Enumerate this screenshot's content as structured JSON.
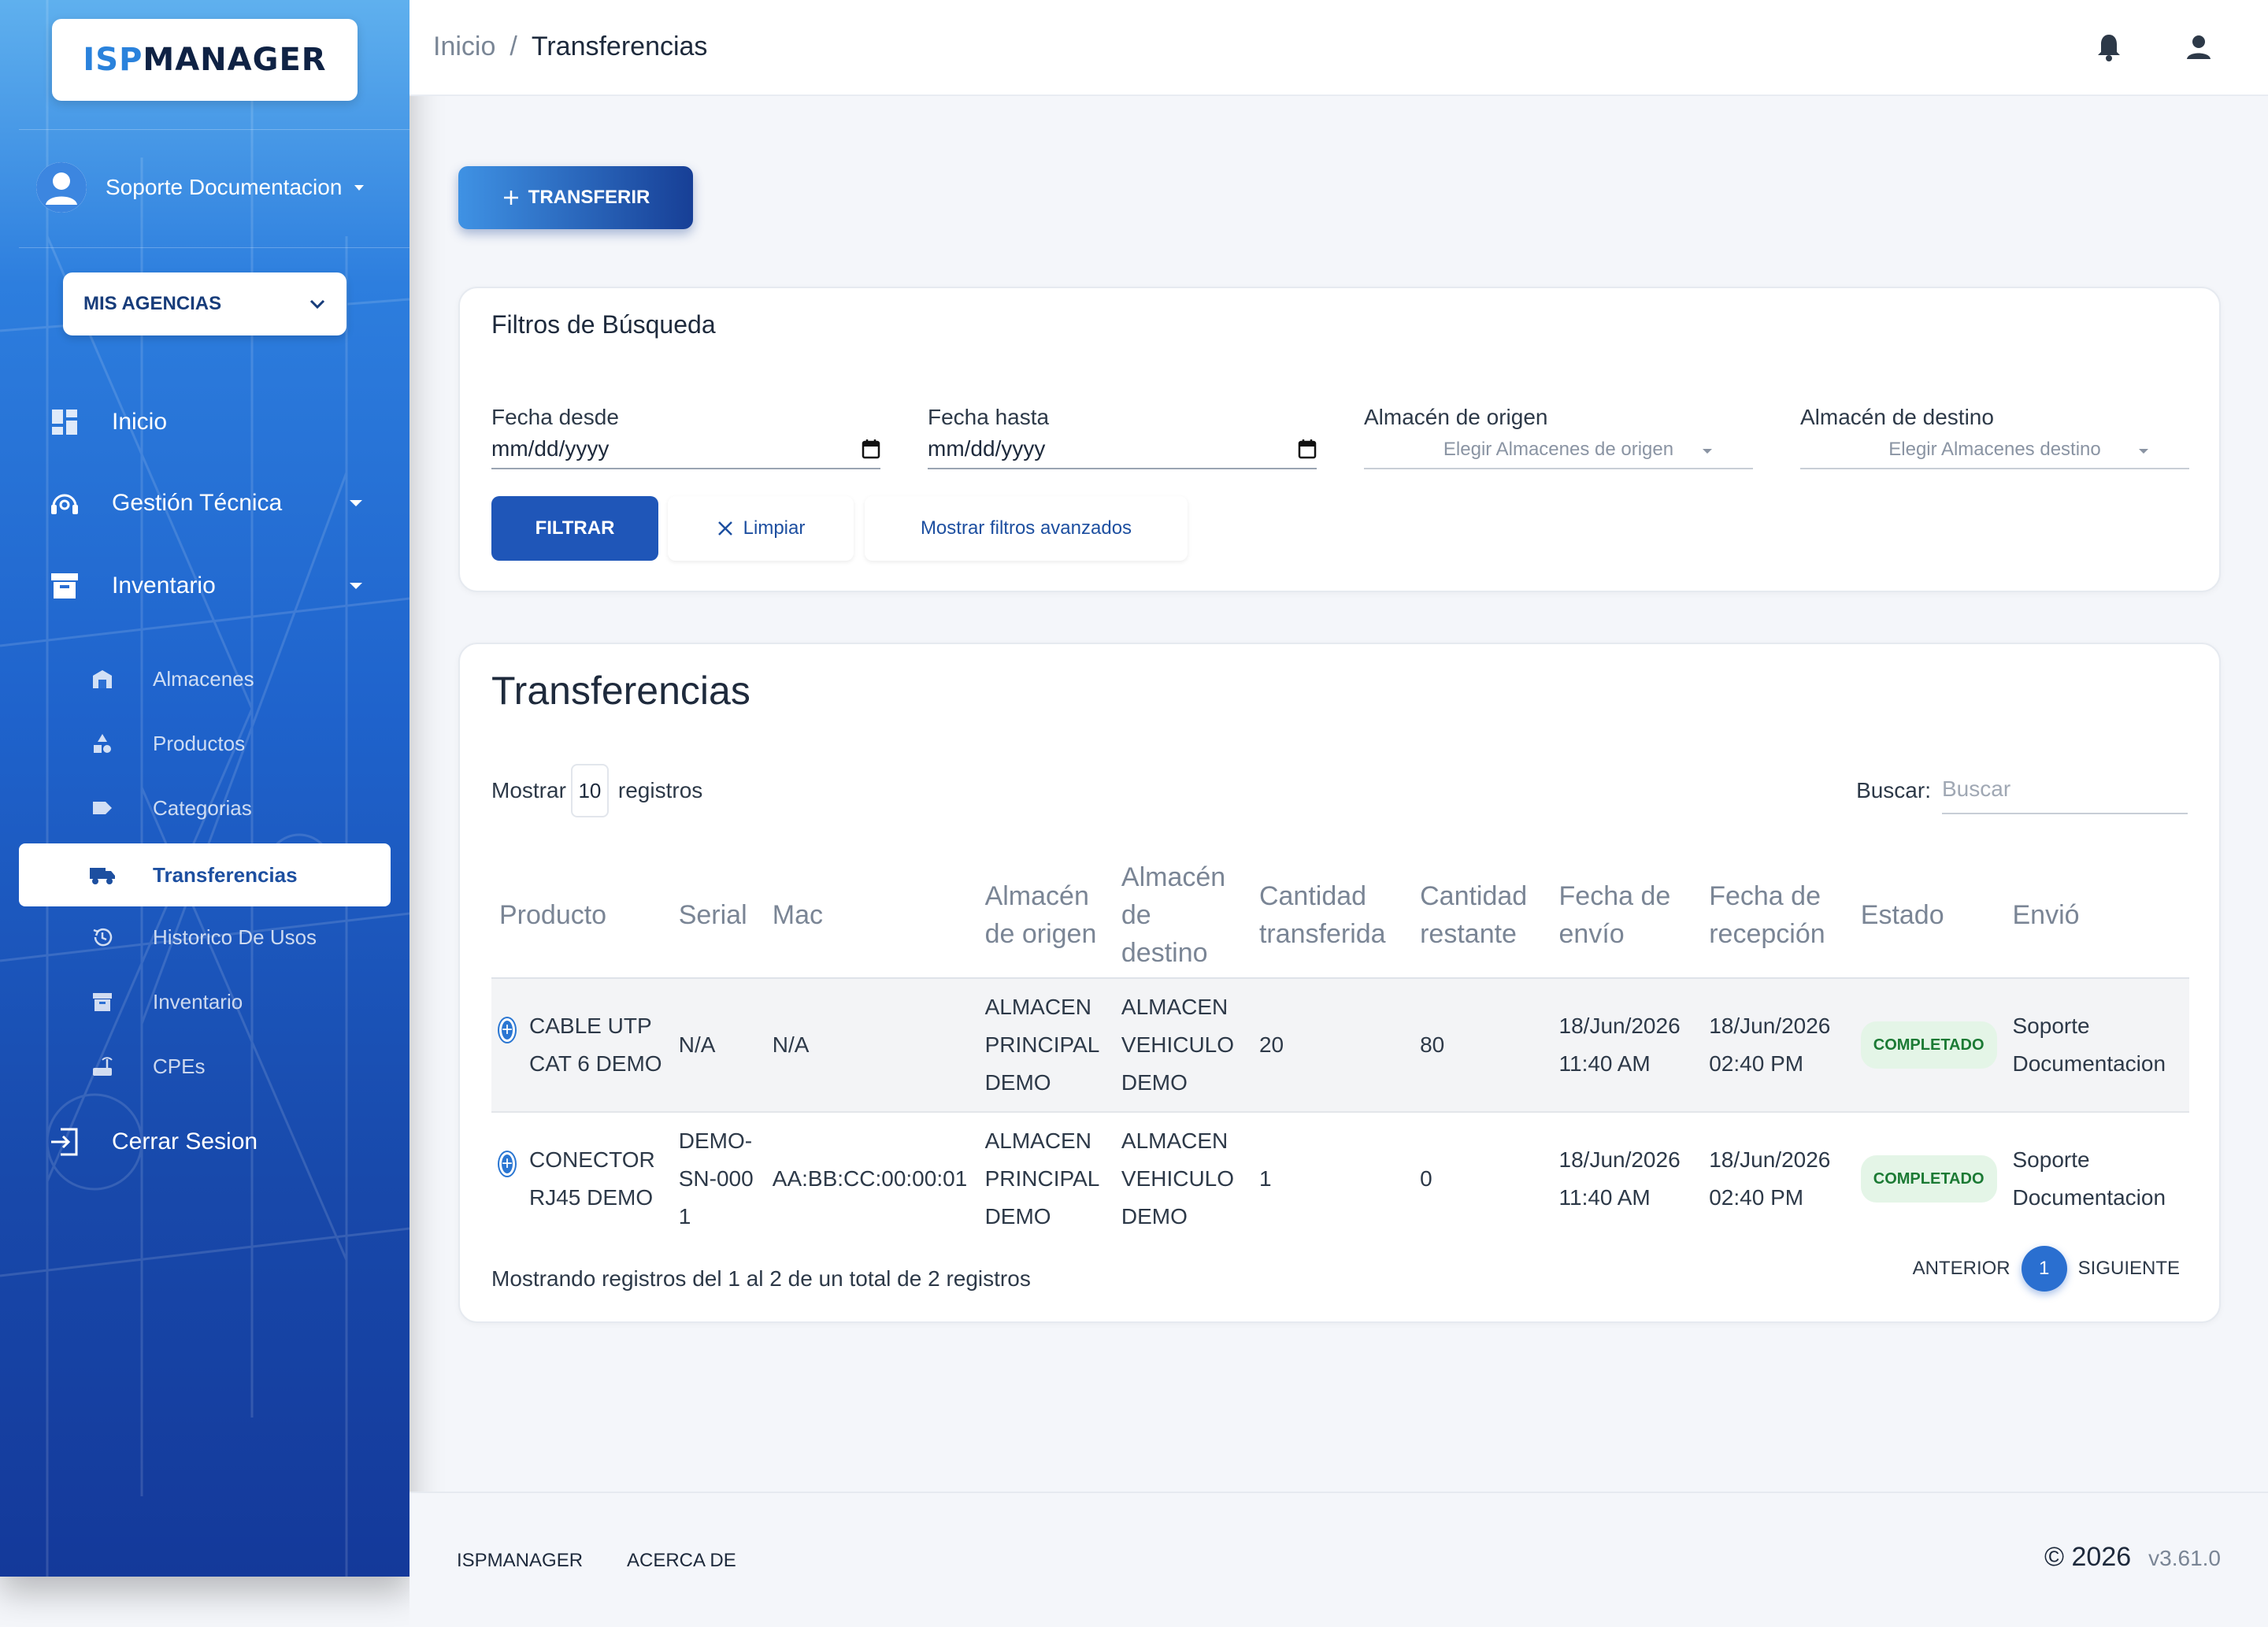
{
  "logo": {
    "part1": "ISP",
    "part2": "MANAGER"
  },
  "user": {
    "name": "Soporte Documentacion"
  },
  "agencies": {
    "label": "MIS AGENCIAS"
  },
  "nav": {
    "inicio": "Inicio",
    "gestion": "Gestión Técnica",
    "inventario": "Inventario",
    "cerrar": "Cerrar Sesion"
  },
  "subnav": {
    "almacenes": "Almacenes",
    "productos": "Productos",
    "categorias": "Categorias",
    "transferencias": "Transferencias",
    "historico": "Historico De Usos",
    "inventario": "Inventario",
    "cpes": "CPEs"
  },
  "breadcrumb": {
    "home": "Inicio",
    "sep": "/",
    "current": "Transferencias"
  },
  "actions": {
    "transferir": "TRANSFERIR"
  },
  "filters": {
    "title": "Filtros de Búsqueda",
    "fecha_desde_label": "Fecha desde",
    "fecha_desde_value": "mm/dd/yyyy",
    "fecha_hasta_label": "Fecha hasta",
    "fecha_hasta_value": "mm/dd/yyyy",
    "origen_label": "Almacén de origen",
    "origen_placeholder": "Elegir Almacenes de origen",
    "destino_label": "Almacén de destino",
    "destino_placeholder": "Elegir Almacenes destino",
    "filtrar": "FILTRAR",
    "limpiar": "Limpiar",
    "avanzados": "Mostrar filtros avanzados"
  },
  "table": {
    "title": "Transferencias",
    "show_prefix": "Mostrar",
    "show_value": "10",
    "show_suffix": "registros",
    "search_label": "Buscar:",
    "search_placeholder": "Buscar",
    "headers": {
      "producto": "Producto",
      "serial": "Serial",
      "mac": "Mac",
      "origen": "Almacén de origen",
      "destino": "Almacén de destino",
      "transferida": "Cantidad transferida",
      "restante": "Cantidad restante",
      "envio_fecha": "Fecha de envío",
      "recepcion_fecha": "Fecha de recepción",
      "estado": "Estado",
      "envio": "Envió"
    },
    "rows": [
      {
        "producto": "CABLE UTP CAT 6 DEMO",
        "serial": "N/A",
        "mac": "N/A",
        "origen": "ALMACEN PRINCIPAL DEMO",
        "destino": "ALMACEN VEHICULO DEMO",
        "transferida": "20",
        "restante": "80",
        "envio_fecha": "18/Jun/2026 11:40 AM",
        "recepcion_fecha": "18/Jun/2026 02:40 PM",
        "estado": "COMPLETADO",
        "envio": "Soporte Documentacion"
      },
      {
        "producto": "CONECTOR RJ45 DEMO",
        "serial": "DEMO-SN-0001",
        "mac": "AA:BB:CC:00:00:01",
        "origen": "ALMACEN PRINCIPAL DEMO",
        "destino": "ALMACEN VEHICULO DEMO",
        "transferida": "1",
        "restante": "0",
        "envio_fecha": "18/Jun/2026 11:40 AM",
        "recepcion_fecha": "18/Jun/2026 02:40 PM",
        "estado": "COMPLETADO",
        "envio": "Soporte Documentacion"
      }
    ],
    "info": "Mostrando registros del 1 al 2 de un total de 2 registros",
    "prev": "ANTERIOR",
    "page": "1",
    "next": "SIGUIENTE"
  },
  "footer": {
    "brand": "ISPMANAGER",
    "about": "ACERCA DE",
    "copyright": "© 2026",
    "version": "v3.61.0"
  },
  "colors": {
    "primary": "#1f56b8",
    "accent": "#2a76d2",
    "success_bg": "#e4f5e7",
    "success_text": "#1b7a34"
  }
}
